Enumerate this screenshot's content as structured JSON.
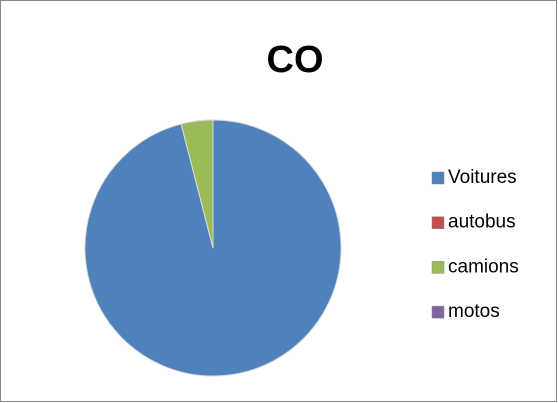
{
  "chart_data": {
    "type": "pie",
    "title": "CO",
    "categories": [
      "Voitures",
      "autobus",
      "camions",
      "motos"
    ],
    "values": [
      96,
      0,
      4,
      0
    ],
    "colors": [
      "#4f81bd",
      "#c0504d",
      "#9bbb59",
      "#8064a2"
    ],
    "legend": "right"
  }
}
